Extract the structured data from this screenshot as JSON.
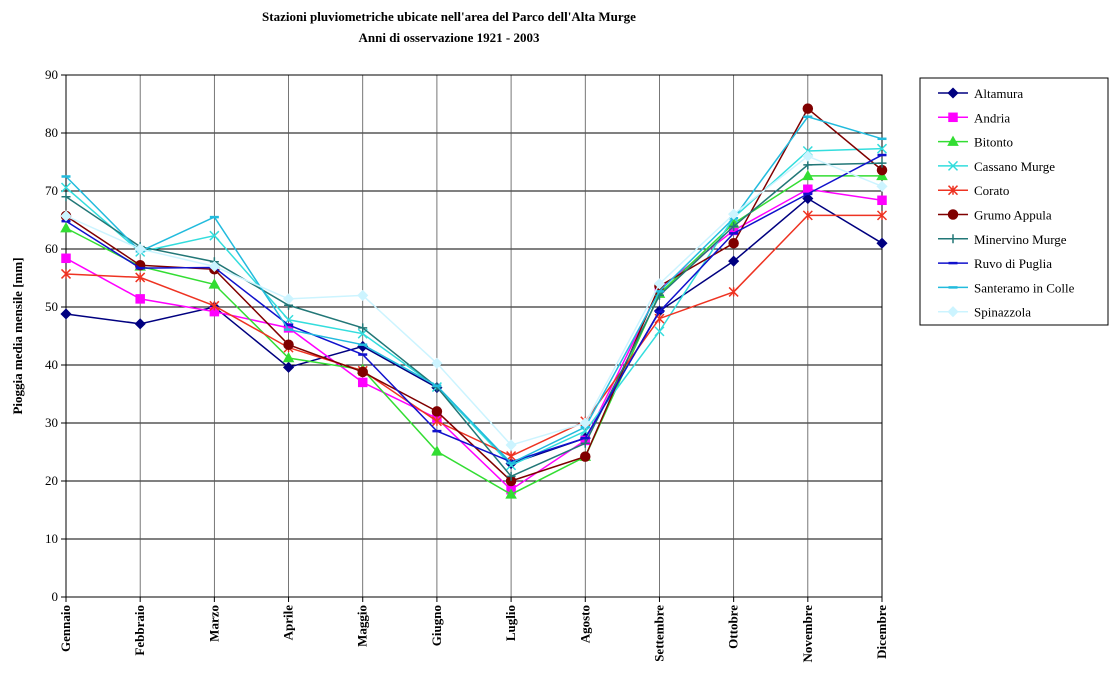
{
  "chart_data": {
    "type": "line",
    "title": "Stazioni pluviometriche ubicate nell'area del Parco dell'Alta Murge",
    "subtitle": "Anni di osservazione 1921 - 2003",
    "y_label": "Pioggia media mensile [mm]",
    "categories": [
      "Gennaio",
      "Febbraio",
      "Marzo",
      "Aprile",
      "Maggio",
      "Giugno",
      "Luglio",
      "Agosto",
      "Settembre",
      "Ottobre",
      "Novembre",
      "Dicembre"
    ],
    "ylim": [
      0,
      90
    ],
    "yticks": [
      0,
      10,
      20,
      30,
      40,
      50,
      60,
      70,
      80,
      90
    ],
    "grid": true,
    "legend": "right",
    "series": [
      {
        "name": "Altamura",
        "color": "#000080",
        "marker": "diamond",
        "values": [
          48.8,
          47.1,
          50,
          39.6,
          43.2,
          36.1,
          23,
          27.4,
          49.3,
          57.9,
          68.7,
          61
        ]
      },
      {
        "name": "Andria",
        "color": "#ff00ff",
        "marker": "square",
        "values": [
          58.4,
          51.4,
          49.2,
          46.4,
          37,
          30.8,
          18.5,
          27,
          53.2,
          63.2,
          70.3,
          68.4
        ]
      },
      {
        "name": "Bitonto",
        "color": "#33dd33",
        "marker": "triangle",
        "values": [
          63.6,
          57,
          53.9,
          41.2,
          39.2,
          25.1,
          17.7,
          24.2,
          52.3,
          64.4,
          72.6,
          72.6
        ]
      },
      {
        "name": "Cassano Murge",
        "color": "#33dddd",
        "marker": "x",
        "values": [
          70.6,
          59.5,
          62.3,
          47.8,
          45.4,
          36.2,
          22.7,
          28.6,
          45.8,
          65.4,
          76.9,
          77.3
        ]
      },
      {
        "name": "Corato",
        "color": "#ee3322",
        "marker": "asterisk",
        "values": [
          55.7,
          55.1,
          50.2,
          43,
          39,
          30.3,
          24.3,
          30.3,
          48,
          52.6,
          65.8,
          65.8
        ]
      },
      {
        "name": "Grumo Appula",
        "color": "#800000",
        "marker": "circle",
        "values": [
          65.7,
          57.2,
          56.5,
          43.5,
          38.8,
          32,
          20,
          24.2,
          53.6,
          61,
          84.2,
          73.6
        ]
      },
      {
        "name": "Minervino Murge",
        "color": "#227777",
        "marker": "plus",
        "values": [
          69,
          60.4,
          57.8,
          50.3,
          46.4,
          36.2,
          20.8,
          26.5,
          52,
          63.9,
          74.5,
          74.8
        ]
      },
      {
        "name": "Ruvo di Puglia",
        "color": "#1111cc",
        "marker": "dash",
        "values": [
          64.8,
          56.7,
          56.8,
          46.9,
          41.8,
          28.6,
          23.3,
          27.4,
          49.2,
          62.7,
          69.5,
          76.2
        ]
      },
      {
        "name": "Santeramo in Colle",
        "color": "#22bbdd",
        "marker": "dash",
        "values": [
          72.5,
          59.6,
          65.5,
          46.1,
          43.5,
          36.4,
          23.1,
          29.3,
          52.7,
          65.3,
          82.8,
          79
        ]
      },
      {
        "name": "Spinazzola",
        "color": "#ccf4ff",
        "marker": "diamond",
        "values": [
          65.7,
          60,
          57,
          51.4,
          52,
          40.3,
          26.2,
          30,
          54,
          66,
          76,
          70.8
        ]
      }
    ]
  }
}
